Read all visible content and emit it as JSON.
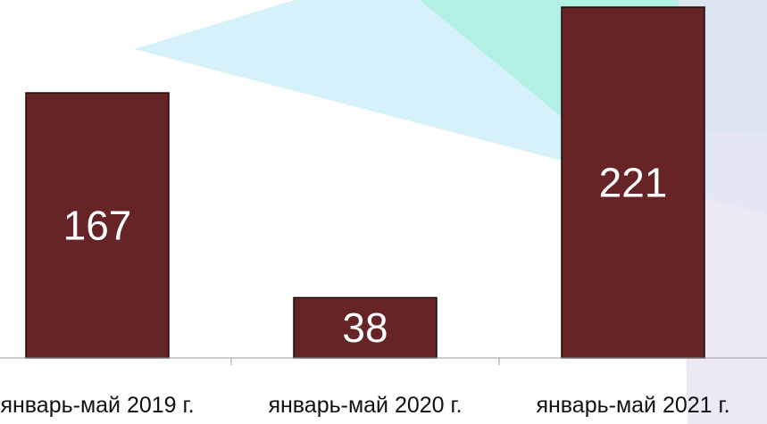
{
  "chart_data": {
    "type": "bar",
    "categories": [
      "январь-май 2019 г.",
      "январь-май 2020 г.",
      "январь-май 2021 г."
    ],
    "values": [
      167,
      38,
      221
    ],
    "title": "",
    "xlabel": "",
    "ylabel": "",
    "ylim": [
      0,
      230
    ],
    "grid": false,
    "legend": "none",
    "data_labels": true
  },
  "colors": {
    "bar_fill": "#662426",
    "bar_stroke": "#1f0d0d",
    "data_label": "#ffffff",
    "axis": "#9a9a9a",
    "bg_blue": "#cfeef8",
    "bg_teal": "#aef0e1",
    "bg_purple": "#e7e4f3"
  }
}
